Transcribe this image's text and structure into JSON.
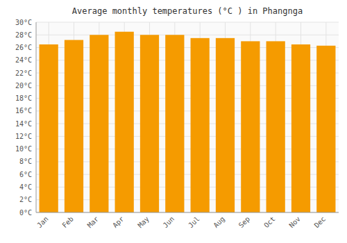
{
  "chart_data": {
    "type": "bar",
    "title": "Average monthly temperatures (°C ) in Phangnga",
    "categories": [
      "Jan",
      "Feb",
      "Mar",
      "Apr",
      "May",
      "Jun",
      "Jul",
      "Aug",
      "Sep",
      "Oct",
      "Nov",
      "Dec"
    ],
    "values": [
      26.5,
      27.2,
      28.0,
      28.5,
      28.0,
      28.0,
      27.5,
      27.5,
      27.0,
      27.0,
      26.5,
      26.3
    ],
    "color": "#F59B00",
    "ylim": [
      0,
      30
    ],
    "yticks": [
      {
        "value": 0,
        "label": "0°C"
      },
      {
        "value": 2,
        "label": "2°C"
      },
      {
        "value": 4,
        "label": "4°C"
      },
      {
        "value": 6,
        "label": "6°C"
      },
      {
        "value": 8,
        "label": "8°C"
      },
      {
        "value": 10,
        "label": "10°C"
      },
      {
        "value": 12,
        "label": "12°C"
      },
      {
        "value": 14,
        "label": "14°C"
      },
      {
        "value": 16,
        "label": "16°C"
      },
      {
        "value": 18,
        "label": "18°C"
      },
      {
        "value": 20,
        "label": "20°C"
      },
      {
        "value": 22,
        "label": "22°C"
      },
      {
        "value": 24,
        "label": "24°C"
      },
      {
        "value": 26,
        "label": "26°C"
      },
      {
        "value": 28,
        "label": "28°C"
      },
      {
        "value": 30,
        "label": "30°C"
      }
    ],
    "grid": true
  }
}
